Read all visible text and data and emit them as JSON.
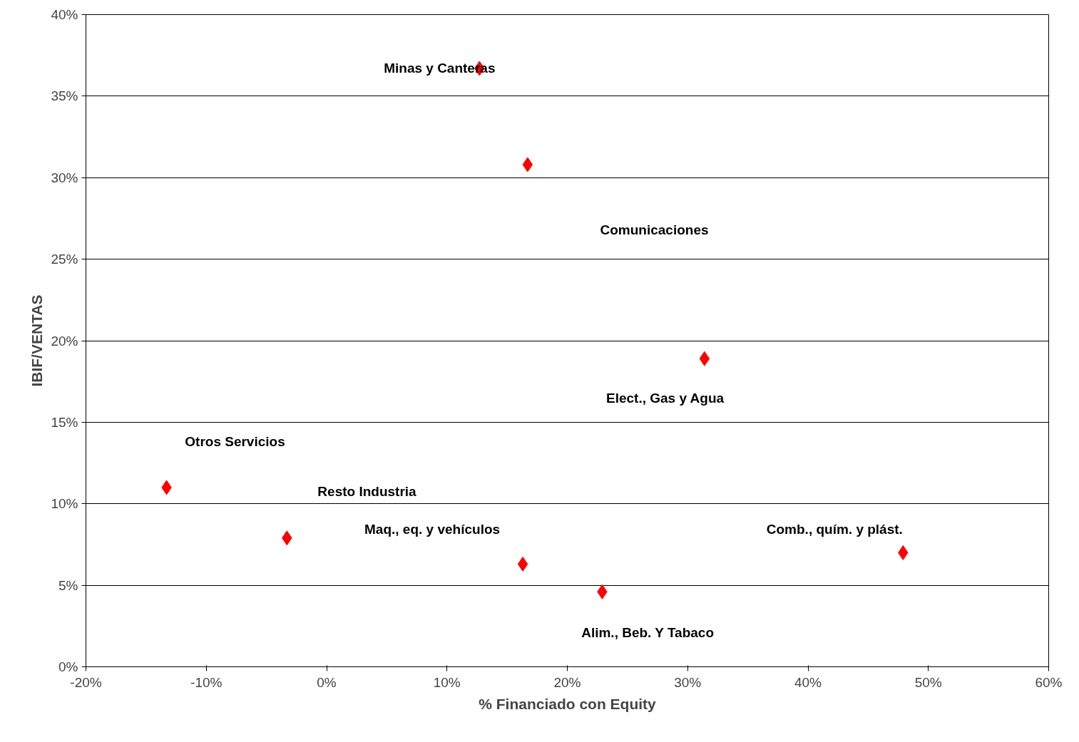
{
  "chart_data": {
    "type": "scatter",
    "xlabel": "% Financiado con Equity",
    "ylabel": "IBIF/VENTAS",
    "x": [
      12.7,
      16.7,
      31.4,
      -13.3,
      -3.3,
      16.3,
      22.9,
      47.9
    ],
    "series": [
      {
        "color": "#ff0000",
        "values": [
          36.7,
          30.8,
          18.9,
          11.0,
          7.9,
          6.3,
          4.6,
          7.0
        ]
      }
    ],
    "marker": "diamond",
    "grid": "y",
    "xlim": [
      -20,
      60
    ],
    "xticks": [
      {
        "value": -20,
        "label": "-20%"
      },
      {
        "value": -10,
        "label": "-10%"
      },
      {
        "value": 0,
        "label": "0%"
      },
      {
        "value": 10,
        "label": "10%"
      },
      {
        "value": 20,
        "label": "20%"
      },
      {
        "value": 30,
        "label": "30%"
      },
      {
        "value": 40,
        "label": "40%"
      },
      {
        "value": 50,
        "label": "50%"
      },
      {
        "value": 60,
        "label": "60%"
      }
    ],
    "ylim": [
      0,
      40
    ],
    "yticks": [
      {
        "value": 0,
        "label": "0%"
      },
      {
        "value": 5,
        "label": "5%"
      },
      {
        "value": 10,
        "label": "10%"
      },
      {
        "value": 15,
        "label": "15%"
      },
      {
        "value": 20,
        "label": "20%"
      },
      {
        "value": 25,
        "label": "25%"
      },
      {
        "value": 30,
        "label": "30%"
      },
      {
        "value": 35,
        "label": "35%"
      },
      {
        "value": 40,
        "label": "40%"
      }
    ],
    "annotations": [
      {
        "text": "Minas y Canteras",
        "x": 12.7,
        "y": 36.7
      },
      "Comunicaciones",
      {
        "text": "Elect., Gas y Agua",
        "x": 31.4,
        "y": 18.9
      },
      "Otros Servicios",
      "Resto Industria",
      {
        "text": "Maq., eq. y vehículos",
        "x": 16.3,
        "y": 6.3
      },
      {
        "text": "Comb., quím. y plást.",
        "x": 47.9,
        "y": 7.0
      },
      {
        "text": "Alim., Beb. Y Tabaco",
        "x": 22.9,
        "y": 4.6
      }
    ]
  }
}
